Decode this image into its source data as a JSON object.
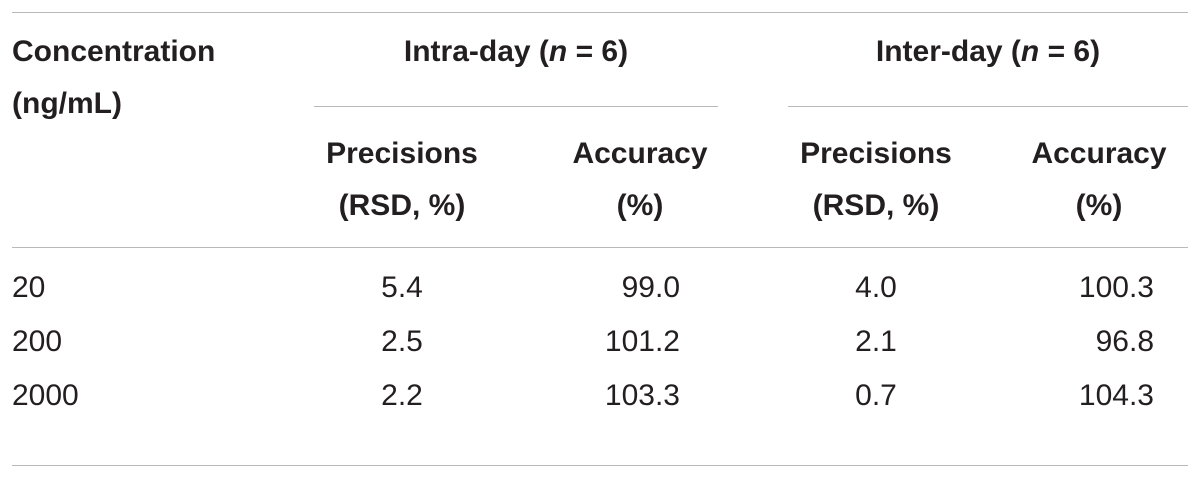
{
  "table": {
    "header": {
      "concentration_line1": "Concentration",
      "concentration_line2": "(ng/mL)",
      "intra_day": "Intra-day (",
      "intra_n": "n",
      "intra_rest": " = 6)",
      "inter_day": "Inter-day (",
      "inter_n": "n",
      "inter_rest": " = 6)",
      "precisions_line1": "Precisions",
      "precisions_line2": "(RSD, %)",
      "accuracy_line1": "Accuracy",
      "accuracy_line2": "(%)"
    },
    "rows": [
      {
        "concentration": "20",
        "intra_precision": "5.4",
        "intra_accuracy": "99.0",
        "inter_precision": "4.0",
        "inter_accuracy": "100.3"
      },
      {
        "concentration": "200",
        "intra_precision": "2.5",
        "intra_accuracy": "101.2",
        "inter_precision": "2.1",
        "inter_accuracy": "96.8"
      },
      {
        "concentration": "2000",
        "intra_precision": "2.2",
        "intra_accuracy": "103.3",
        "inter_precision": "0.7",
        "inter_accuracy": "104.3"
      }
    ]
  }
}
